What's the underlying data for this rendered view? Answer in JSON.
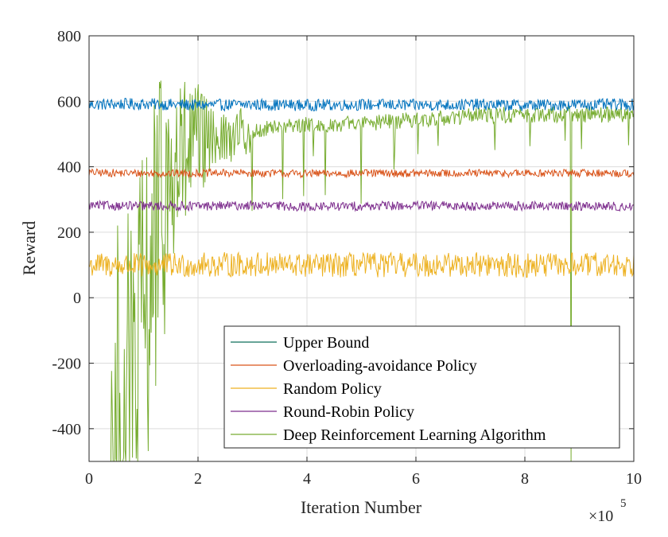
{
  "chart_data": {
    "type": "line",
    "xlabel": "Iteration Number",
    "ylabel": "Reward",
    "x_exponent_label": "×10",
    "x_exponent_power": "5",
    "xlim": [
      0,
      10
    ],
    "ylim": [
      -500,
      800
    ],
    "xticks": [
      "0",
      "2",
      "4",
      "6",
      "8",
      "10"
    ],
    "yticks": [
      "800",
      "600",
      "400",
      "200",
      "0",
      "-200",
      "-400"
    ],
    "grid": true,
    "legend_position": "bottom-right",
    "series": [
      {
        "name": "Upper Bound",
        "color": "#0072BD",
        "legend_color": "#0E6E5A",
        "x": [
          0,
          1,
          2,
          3,
          4,
          5,
          6,
          7,
          8,
          9,
          10
        ],
        "values": [
          590,
          592,
          588,
          590,
          588,
          590,
          588,
          590,
          588,
          590,
          590
        ]
      },
      {
        "name": "Overloading-avoidance Policy",
        "color": "#D95319",
        "x": [
          0,
          1,
          2,
          3,
          4,
          5,
          6,
          7,
          8,
          9,
          10
        ],
        "values": [
          382,
          380,
          380,
          381,
          379,
          380,
          380,
          380,
          380,
          381,
          380
        ]
      },
      {
        "name": "Random Policy",
        "color": "#EDB120",
        "x": [
          0,
          1,
          2,
          3,
          4,
          5,
          6,
          7,
          8,
          9,
          10
        ],
        "values": [
          100,
          98,
          100,
          102,
          98,
          100,
          100,
          102,
          98,
          100,
          100
        ]
      },
      {
        "name": "Round-Robin Policy",
        "color": "#7E2F8E",
        "x": [
          0,
          1,
          2,
          3,
          4,
          5,
          6,
          7,
          8,
          9,
          10
        ],
        "values": [
          282,
          280,
          280,
          282,
          278,
          280,
          281,
          280,
          280,
          280,
          278
        ]
      },
      {
        "name": "Deep Reinforcement Learning Algorithm",
        "color": "#77AC30",
        "x": [
          0.4,
          0.6,
          0.8,
          1.0,
          1.2,
          1.4,
          1.6,
          1.8,
          2.0,
          2.2,
          2.5,
          3.0,
          3.5,
          4.0,
          5.0,
          6.0,
          7.0,
          8.0,
          9.0,
          10.0
        ],
        "values": [
          -500,
          -480,
          -300,
          -100,
          150,
          300,
          380,
          430,
          470,
          480,
          490,
          510,
          525,
          530,
          530,
          545,
          555,
          560,
          560,
          560
        ]
      }
    ]
  }
}
